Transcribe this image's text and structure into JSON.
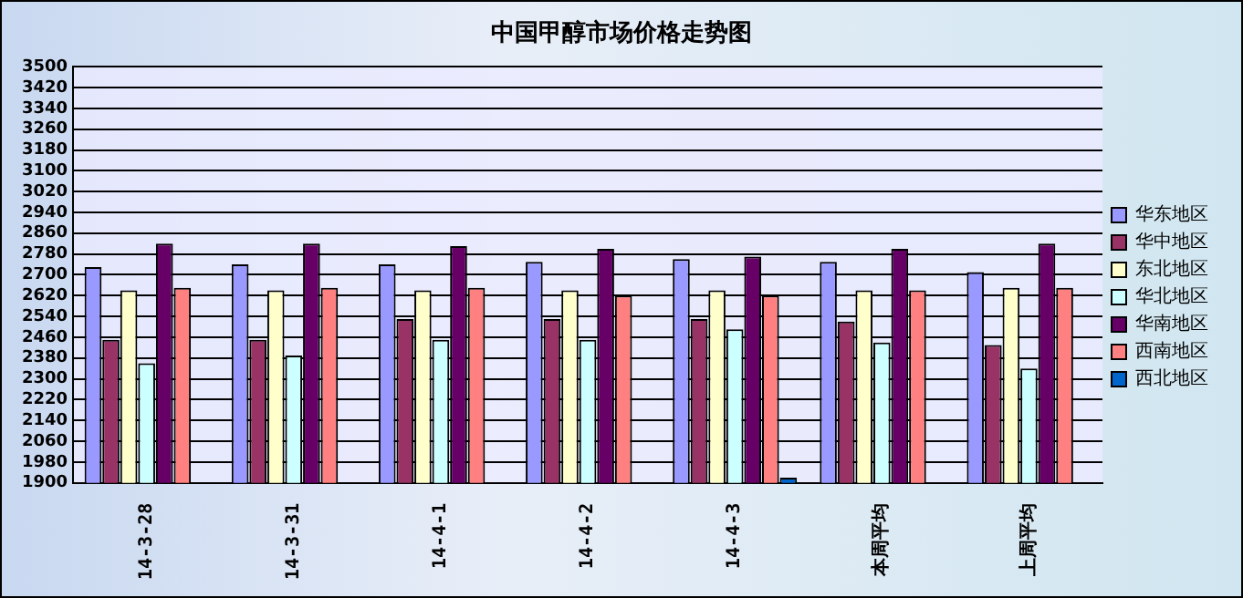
{
  "chart_data": {
    "type": "bar",
    "title": "中国甲醇市场价格走势图",
    "categories": [
      "14-3-28",
      "14-3-31",
      "14-4-1",
      "14-4-2",
      "14-4-3",
      "本周平均",
      "上周平均"
    ],
    "series": [
      {
        "name": "华东地区",
        "color": "#9999ff",
        "values": [
          2730,
          2740,
          2740,
          2750,
          2760,
          2750,
          2710
        ]
      },
      {
        "name": "华中地区",
        "color": "#993366",
        "values": [
          2450,
          2450,
          2530,
          2530,
          2530,
          2520,
          2430
        ]
      },
      {
        "name": "东北地区",
        "color": "#ffffcc",
        "values": [
          2640,
          2640,
          2640,
          2640,
          2640,
          2640,
          2650
        ]
      },
      {
        "name": "华北地区",
        "color": "#ccffff",
        "values": [
          2360,
          2390,
          2450,
          2450,
          2490,
          2440,
          2340
        ]
      },
      {
        "name": "华南地区",
        "color": "#660066",
        "values": [
          2820,
          2820,
          2810,
          2800,
          2770,
          2800,
          2820
        ]
      },
      {
        "name": "西南地区",
        "color": "#ff8080",
        "values": [
          2650,
          2650,
          2650,
          2620,
          2620,
          2640,
          2650
        ]
      },
      {
        "name": "西北地区",
        "color": "#0066cc",
        "values": [
          null,
          null,
          null,
          null,
          1920,
          null,
          null
        ]
      }
    ],
    "ylim": [
      1900,
      3500
    ],
    "yticks": [
      1900,
      1980,
      2060,
      2140,
      2220,
      2300,
      2380,
      2460,
      2540,
      2620,
      2700,
      2780,
      2860,
      2940,
      3020,
      3100,
      3180,
      3260,
      3340,
      3420,
      3500
    ],
    "grid": "y",
    "legend": "right"
  }
}
